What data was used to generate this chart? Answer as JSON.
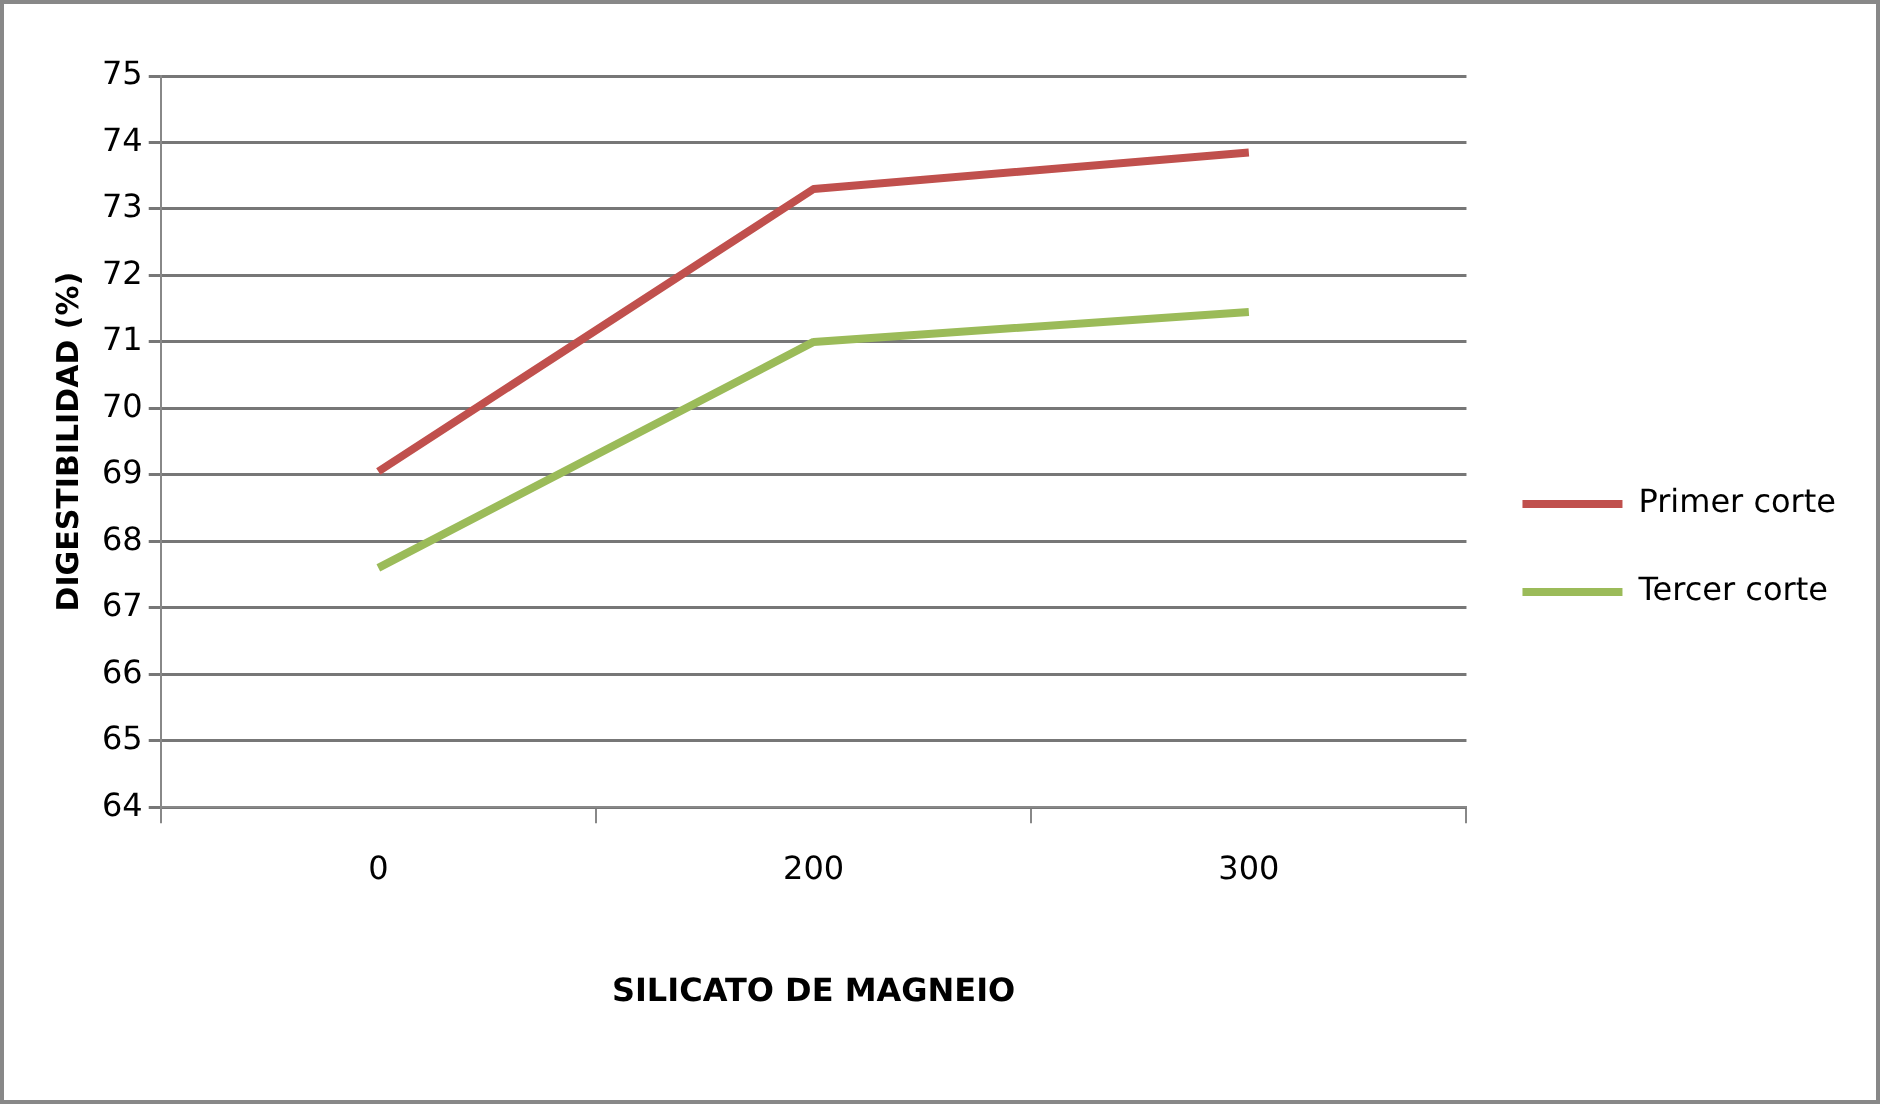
{
  "chart_data": {
    "type": "line",
    "xlabel": "SILICATO DE MAGNEIO",
    "ylabel": "DIGESTIBILIDAD (%)",
    "categories": [
      "0",
      "200",
      "300"
    ],
    "series": [
      {
        "name": "Primer corte",
        "color": "#c0504d",
        "values": [
          69.05,
          73.3,
          73.85
        ]
      },
      {
        "name": "Tercer corte",
        "color": "#9bbb59",
        "values": [
          67.6,
          71.0,
          71.45
        ]
      }
    ],
    "ylim": [
      64,
      75
    ],
    "yticks": [
      64,
      65,
      66,
      67,
      68,
      69,
      70,
      71,
      72,
      73,
      74,
      75
    ],
    "grid": "y",
    "legend": "right",
    "marker": "none",
    "line_style": "solid"
  }
}
